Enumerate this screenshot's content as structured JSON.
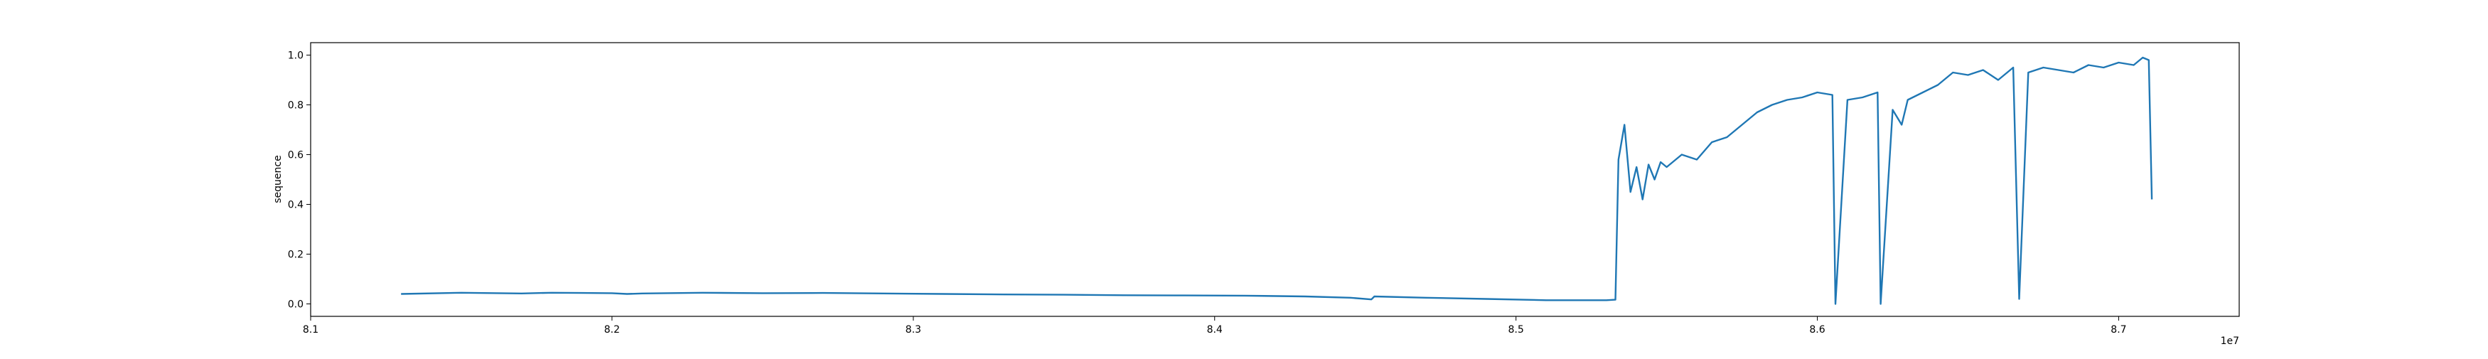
{
  "chart_data": {
    "type": "line",
    "title": "",
    "xlabel": "",
    "ylabel": "sequence",
    "x_offset_label": "1e7",
    "xlim": [
      81000000,
      87400000
    ],
    "ylim": [
      -0.05,
      1.05
    ],
    "x_ticks": [
      {
        "value": 81000000,
        "label": "8.1"
      },
      {
        "value": 82000000,
        "label": "8.2"
      },
      {
        "value": 83000000,
        "label": "8.3"
      },
      {
        "value": 84000000,
        "label": "8.4"
      },
      {
        "value": 85000000,
        "label": "8.5"
      },
      {
        "value": 86000000,
        "label": "8.6"
      },
      {
        "value": 87000000,
        "label": "8.7"
      }
    ],
    "y_ticks": [
      {
        "value": 0.0,
        "label": "0.0"
      },
      {
        "value": 0.2,
        "label": "0.2"
      },
      {
        "value": 0.4,
        "label": "0.4"
      },
      {
        "value": 0.6,
        "label": "0.6"
      },
      {
        "value": 0.8,
        "label": "0.8"
      },
      {
        "value": 1.0,
        "label": "1.0"
      }
    ],
    "grid": false,
    "legend": "none",
    "series": [
      {
        "color": "#1f77b4",
        "x": [
          81300000,
          81500000,
          81700000,
          81800000,
          81900000,
          82000000,
          82050000,
          82100000,
          82300000,
          82500000,
          82700000,
          82900000,
          83100000,
          83300000,
          83500000,
          83700000,
          83900000,
          84100000,
          84300000,
          84450000,
          84520000,
          84530000,
          84700000,
          84900000,
          85100000,
          85300000,
          85330000,
          85340000,
          85360000,
          85380000,
          85400000,
          85420000,
          85440000,
          85460000,
          85480000,
          85500000,
          85550000,
          85600000,
          85650000,
          85700000,
          85750000,
          85800000,
          85850000,
          85900000,
          85950000,
          86000000,
          86050000,
          86060000,
          86100000,
          86150000,
          86200000,
          86210000,
          86250000,
          86280000,
          86300000,
          86350000,
          86400000,
          86450000,
          86500000,
          86550000,
          86600000,
          86650000,
          86670000,
          86700000,
          86750000,
          86800000,
          86850000,
          86900000,
          86950000,
          87000000,
          87050000,
          87080000,
          87100000,
          87110000
        ],
        "y": [
          0.04,
          0.045,
          0.042,
          0.045,
          0.044,
          0.043,
          0.04,
          0.042,
          0.045,
          0.043,
          0.044,
          0.042,
          0.04,
          0.038,
          0.037,
          0.035,
          0.034,
          0.033,
          0.03,
          0.025,
          0.018,
          0.03,
          0.025,
          0.02,
          0.015,
          0.015,
          0.017,
          0.58,
          0.72,
          0.45,
          0.55,
          0.42,
          0.56,
          0.5,
          0.57,
          0.55,
          0.6,
          0.58,
          0.65,
          0.67,
          0.72,
          0.77,
          0.8,
          0.82,
          0.83,
          0.85,
          0.84,
          0.0,
          0.82,
          0.83,
          0.85,
          0.0,
          0.78,
          0.72,
          0.82,
          0.85,
          0.88,
          0.93,
          0.92,
          0.94,
          0.9,
          0.95,
          0.02,
          0.93,
          0.95,
          0.94,
          0.93,
          0.96,
          0.95,
          0.97,
          0.96,
          0.99,
          0.98,
          0.42
        ]
      }
    ]
  }
}
